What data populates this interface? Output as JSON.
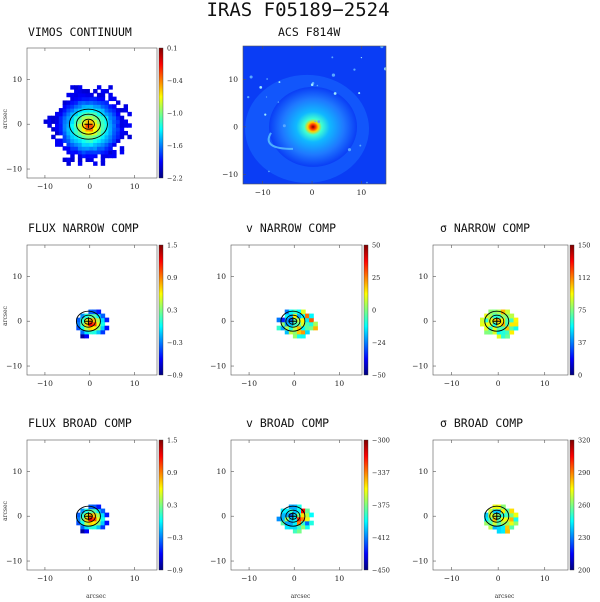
{
  "figure": {
    "title": "IRAS F05189−2524",
    "colormap": [
      "#00007f",
      "#0000ff",
      "#007fff",
      "#00ffff",
      "#7fff7f",
      "#ffff00",
      "#ff7f00",
      "#ff0000",
      "#7f0000"
    ]
  },
  "panels": [
    {
      "id": "vimos-continuum",
      "title": "VIMOS CONTINUUM",
      "show_ylabel": true,
      "show_xlabel": false,
      "ylabel": "arcsec",
      "xlabel": "",
      "xticks": [
        "−10",
        "0",
        "10"
      ],
      "yticks": [
        "10",
        "0",
        "−10"
      ],
      "colorbar_ticks": [
        "0.1",
        "−0.4",
        "−1.0",
        "−1.6",
        "−2.2"
      ],
      "has_colorbar": true,
      "map": "continuum"
    },
    {
      "id": "acs-f814w",
      "title": "ACS F814W",
      "show_ylabel": false,
      "show_xlabel": false,
      "ylabel": "",
      "xlabel": "",
      "xticks": [
        "−10",
        "0",
        "10"
      ],
      "yticks": [
        "10",
        "0",
        "−10"
      ],
      "colorbar_ticks": [],
      "has_colorbar": false,
      "map": "hst"
    },
    {
      "id": "flux-narrow",
      "title": "FLUX NARROW COMP",
      "show_ylabel": true,
      "show_xlabel": false,
      "ylabel": "arcsec",
      "xlabel": "",
      "xticks": [
        "−10",
        "0",
        "10"
      ],
      "yticks": [
        "10",
        "0",
        "−10"
      ],
      "colorbar_ticks": [
        "1.5",
        "0.9",
        "0.3",
        "−0.3",
        "−0.9"
      ],
      "has_colorbar": true,
      "map": "flux"
    },
    {
      "id": "v-narrow",
      "title": "v NARROW COMP",
      "show_ylabel": false,
      "show_xlabel": false,
      "ylabel": "",
      "xlabel": "",
      "xticks": [
        "−10",
        "0",
        "10"
      ],
      "yticks": [
        "10",
        "0",
        "−10"
      ],
      "colorbar_ticks": [
        "50",
        "25",
        "0",
        "−24",
        "−50"
      ],
      "has_colorbar": true,
      "map": "vel"
    },
    {
      "id": "sigma-narrow",
      "title": "σ NARROW COMP",
      "show_ylabel": false,
      "show_xlabel": false,
      "ylabel": "",
      "xlabel": "",
      "xticks": [
        "−10",
        "0",
        "10"
      ],
      "yticks": [
        "10",
        "0",
        "−10"
      ],
      "colorbar_ticks": [
        "150",
        "112",
        "75",
        "37",
        "0"
      ],
      "has_colorbar": true,
      "map": "sigma"
    },
    {
      "id": "flux-broad",
      "title": "FLUX BROAD COMP",
      "show_ylabel": true,
      "show_xlabel": true,
      "ylabel": "arcsec",
      "xlabel": "arcsec",
      "xticks": [
        "−10",
        "0",
        "10"
      ],
      "yticks": [
        "10",
        "0",
        "−10"
      ],
      "colorbar_ticks": [
        "1.5",
        "0.9",
        "0.3",
        "−0.3",
        "−0.9"
      ],
      "has_colorbar": true,
      "map": "flux"
    },
    {
      "id": "v-broad",
      "title": "v BROAD COMP",
      "show_ylabel": false,
      "show_xlabel": true,
      "ylabel": "",
      "xlabel": "arcsec",
      "xticks": [
        "−10",
        "0",
        "10"
      ],
      "yticks": [
        "10",
        "0",
        "−10"
      ],
      "colorbar_ticks": [
        "−300",
        "−337",
        "−375",
        "−412",
        "−450"
      ],
      "has_colorbar": true,
      "map": "velb"
    },
    {
      "id": "sigma-broad",
      "title": "σ BROAD COMP",
      "show_ylabel": false,
      "show_xlabel": true,
      "ylabel": "",
      "xlabel": "arcsec",
      "xticks": [
        "−10",
        "0",
        "10"
      ],
      "yticks": [
        "10",
        "0",
        "−10"
      ],
      "colorbar_ticks": [
        "320",
        "290",
        "260",
        "230",
        "200"
      ],
      "has_colorbar": true,
      "map": "sigmab"
    }
  ]
}
